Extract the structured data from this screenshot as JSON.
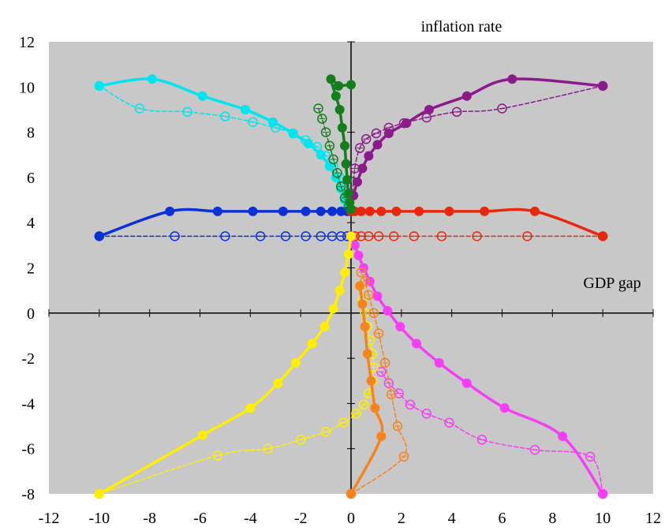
{
  "chart_data": {
    "type": "line",
    "xlabel": "GDP gap",
    "ylabel": "inflation rate",
    "xlim": [
      -12,
      12
    ],
    "ylim": [
      -8,
      12
    ],
    "x_ticks": [
      -12,
      -10,
      -8,
      -6,
      -4,
      -2,
      0,
      2,
      4,
      6,
      8,
      10,
      12
    ],
    "y_ticks": [
      -8,
      -6,
      -4,
      -2,
      0,
      2,
      4,
      6,
      8,
      10,
      12
    ],
    "x_tick_labels": [
      "-12",
      "-10",
      "-8",
      "-6",
      "-4",
      "-2",
      "0",
      "2",
      "4",
      "6",
      "8",
      "10",
      "12"
    ],
    "y_tick_labels": [
      "-8",
      "-6",
      "-4",
      "-2",
      "0",
      "2",
      "4",
      "6",
      "8",
      "10",
      "12"
    ],
    "plot_background": "#c8c8c8",
    "grid": false,
    "series": [
      {
        "color": "#00e5ee",
        "style": "solid",
        "marker": "filled",
        "x": [
          -10,
          -7.9,
          -5.9,
          -4.2,
          -3.1,
          -2.3,
          -1.7,
          -1.2,
          -0.85,
          -0.6,
          -0.4,
          -0.25,
          -0.1,
          0
        ],
        "y": [
          10.05,
          10.35,
          9.6,
          9.0,
          8.45,
          7.95,
          7.5,
          7.0,
          6.5,
          6.0,
          5.5,
          5.0,
          4.7,
          4.5
        ]
      },
      {
        "color": "#00e5ee",
        "style": "dashed",
        "marker": "open",
        "x": [
          -10,
          -8.4,
          -6.5,
          -5.0,
          -3.9,
          -3.0,
          -2.3,
          -1.8,
          -1.35,
          -1.0,
          -0.7,
          -0.45,
          -0.25,
          -0.1,
          0
        ],
        "y": [
          10.05,
          9.05,
          8.9,
          8.7,
          8.45,
          8.2,
          7.95,
          7.65,
          7.35,
          6.95,
          6.5,
          6.0,
          5.4,
          4.8,
          4.5
        ]
      },
      {
        "color": "#8b1a8b",
        "style": "solid",
        "marker": "filled",
        "x": [
          10,
          6.4,
          4.6,
          3.1,
          2.2,
          1.5,
          1.05,
          0.7,
          0.45,
          0.25,
          0.1,
          0
        ],
        "y": [
          10.05,
          10.35,
          9.6,
          9.0,
          8.4,
          7.95,
          7.45,
          6.95,
          6.4,
          5.8,
          5.2,
          4.5
        ]
      },
      {
        "color": "#8b1a8b",
        "style": "dashed",
        "marker": "open",
        "x": [
          10,
          6.0,
          4.2,
          3.0,
          2.1,
          1.5,
          1.0,
          0.6,
          0.35,
          0.15,
          0
        ],
        "y": [
          10.05,
          9.05,
          8.9,
          8.65,
          8.4,
          8.2,
          7.95,
          7.7,
          7.3,
          6.4,
          4.5
        ]
      },
      {
        "color": "#0a31d6",
        "style": "solid",
        "marker": "filled",
        "x": [
          -10,
          -7.2,
          -5.3,
          -3.9,
          -2.7,
          -1.8,
          -1.2,
          -0.75,
          -0.4,
          -0.15,
          0
        ],
        "y": [
          3.4,
          4.5,
          4.5,
          4.5,
          4.5,
          4.5,
          4.5,
          4.5,
          4.5,
          4.5,
          4.5
        ]
      },
      {
        "color": "#0a31d6",
        "style": "dashed",
        "marker": "open",
        "x": [
          -10,
          -7.0,
          -5.0,
          -3.6,
          -2.6,
          -1.8,
          -1.2,
          -0.75,
          -0.4,
          -0.15,
          0
        ],
        "y": [
          3.4,
          3.4,
          3.4,
          3.4,
          3.4,
          3.4,
          3.4,
          3.4,
          3.4,
          3.4,
          3.4
        ]
      },
      {
        "color": "#e8280c",
        "style": "solid",
        "marker": "filled",
        "x": [
          10,
          7.3,
          5.3,
          3.9,
          2.7,
          1.8,
          1.2,
          0.75,
          0.4,
          0.15,
          0
        ],
        "y": [
          3.4,
          4.5,
          4.5,
          4.5,
          4.5,
          4.5,
          4.5,
          4.5,
          4.5,
          4.5,
          4.5
        ]
      },
      {
        "color": "#e8280c",
        "style": "dashed",
        "marker": "open",
        "x": [
          10,
          7.0,
          5.0,
          3.6,
          2.5,
          1.7,
          1.1,
          0.7,
          0.4,
          0.15,
          0
        ],
        "y": [
          3.4,
          3.4,
          3.4,
          3.4,
          3.4,
          3.4,
          3.4,
          3.4,
          3.4,
          3.4,
          3.4
        ]
      },
      {
        "color": "#f53ff5",
        "style": "solid",
        "marker": "filled",
        "x": [
          10,
          8.4,
          6.1,
          4.6,
          3.5,
          2.6,
          1.95,
          1.45,
          1.05,
          0.75,
          0.5,
          0.3,
          0.15,
          0
        ],
        "y": [
          -8,
          -5.45,
          -4.2,
          -3.1,
          -2.2,
          -1.35,
          -0.6,
          0.1,
          0.75,
          1.4,
          2.0,
          2.55,
          3.0,
          3.4
        ]
      },
      {
        "color": "#f53ff5",
        "style": "dashed",
        "marker": "open",
        "x": [
          10,
          9.5,
          7.3,
          5.2,
          3.9,
          3.0,
          2.35,
          1.9,
          1.5,
          1.2
        ],
        "y": [
          -8,
          -6.35,
          -6.05,
          -5.6,
          -4.85,
          -4.45,
          -4.05,
          -3.55,
          -3.1,
          -2.6
        ]
      },
      {
        "color": "#ffee00",
        "style": "solid",
        "marker": "filled",
        "x": [
          -10,
          -5.9,
          -4.0,
          -2.9,
          -2.2,
          -1.55,
          -1.05,
          -0.7,
          -0.45,
          -0.25,
          -0.1,
          0
        ],
        "y": [
          -8,
          -5.4,
          -4.2,
          -3.1,
          -2.2,
          -1.35,
          -0.6,
          0.2,
          1.0,
          1.8,
          2.6,
          3.4
        ]
      },
      {
        "color": "#ffee00",
        "style": "dashed",
        "marker": "open",
        "x": [
          -10,
          -5.3,
          -3.3,
          -2.0,
          -1.0,
          -0.3,
          0.2,
          0.5,
          0.7,
          0.85,
          0.9,
          0.85,
          0.75,
          0.65,
          0.55,
          0.45,
          0.35
        ],
        "y": [
          -8,
          -6.3,
          -6.0,
          -5.6,
          -5.25,
          -4.85,
          -4.45,
          -4.05,
          -3.55,
          -3.0,
          -2.4,
          -1.8,
          -1.2,
          -0.6,
          0,
          0.6,
          1.2
        ]
      },
      {
        "color": "#f5841f",
        "style": "solid",
        "marker": "filled",
        "x": [
          0,
          1.2,
          0.95,
          0.8,
          0.65,
          0.55,
          0.45,
          0.35
        ],
        "y": [
          -8,
          -5.45,
          -4.2,
          -3.0,
          -1.8,
          -0.6,
          0.4,
          1.2
        ]
      },
      {
        "color": "#f5841f",
        "style": "dashed",
        "marker": "open",
        "x": [
          0,
          2.1,
          1.85,
          1.6,
          1.35,
          1.1,
          0.9,
          0.7,
          0.55,
          0.4
        ],
        "y": [
          -8,
          -6.35,
          -5.0,
          -3.6,
          -2.2,
          -0.9,
          0,
          0.8,
          1.4,
          1.8
        ]
      },
      {
        "color": "#157e1c",
        "style": "solid",
        "marker": "filled",
        "x": [
          -0.5,
          -0.8,
          -0.6,
          -0.45,
          -0.35,
          -0.25,
          -0.2,
          -0.15,
          -0.1,
          -0.05,
          0
        ],
        "y": [
          10.05,
          10.35,
          9.6,
          9.0,
          8.2,
          7.4,
          6.6,
          5.9,
          5.3,
          4.9,
          4.6
        ]
      },
      {
        "color": "#157e1c",
        "style": "solid",
        "marker": "filled",
        "x": [
          -0.5,
          0
        ],
        "y": [
          10.05,
          10.1
        ]
      },
      {
        "color": "#157e1c",
        "style": "dashed",
        "marker": "open",
        "x": [
          -1.3,
          -1.15,
          -1.0,
          -0.85,
          -0.7,
          -0.55,
          -0.4,
          -0.25,
          -0.1
        ],
        "y": [
          9.05,
          8.6,
          8.0,
          7.4,
          6.8,
          6.2,
          5.6,
          5.1,
          4.7
        ]
      }
    ]
  }
}
